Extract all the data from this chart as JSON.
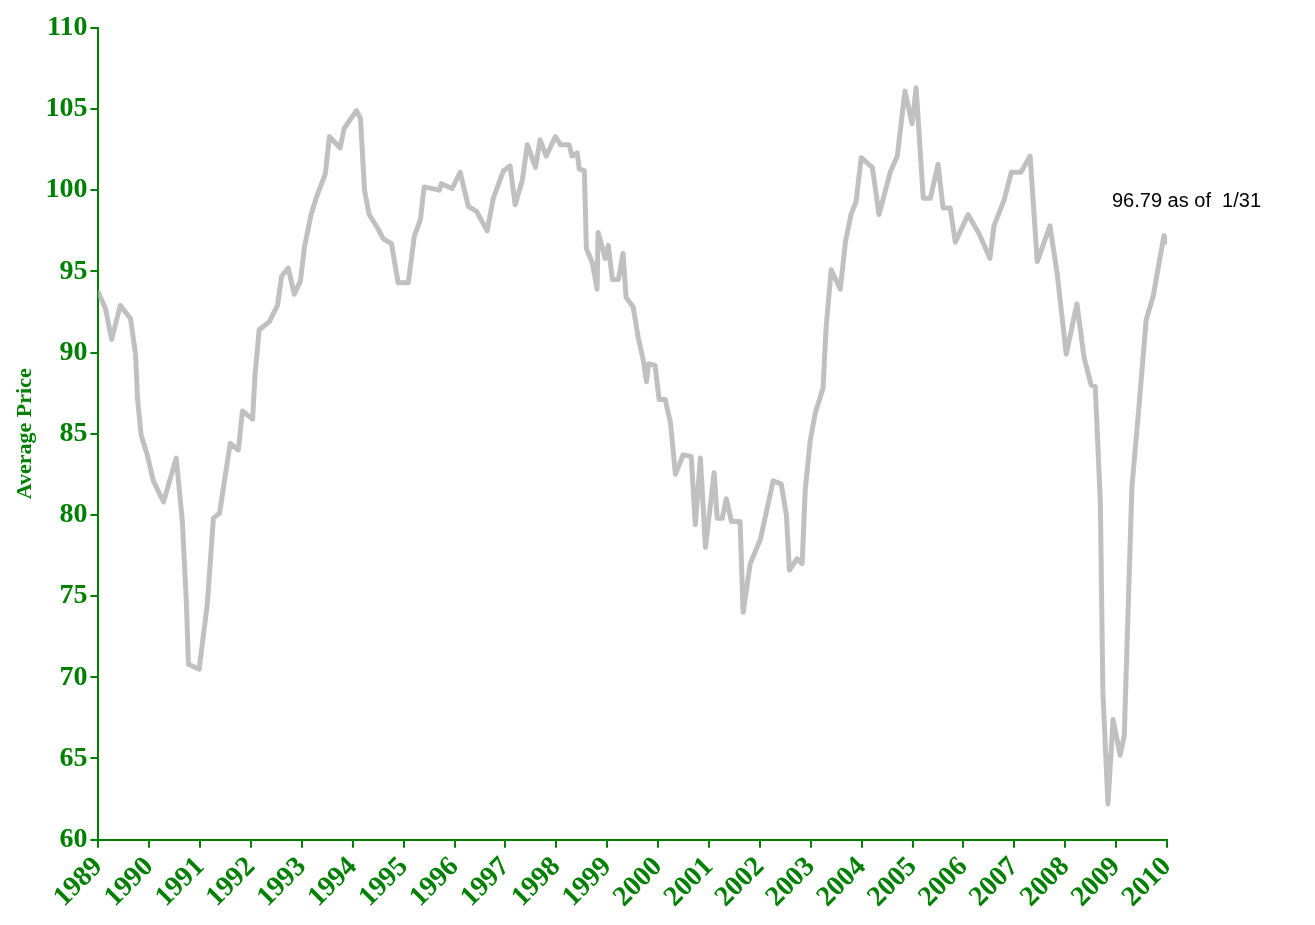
{
  "chart_data": {
    "type": "line",
    "ylabel": "Average Price",
    "x": [
      1989.0,
      1989.14,
      1989.26,
      1989.43,
      1989.63,
      1989.73,
      1989.77,
      1989.84,
      1989.96,
      1990.08,
      1990.28,
      1990.53,
      1990.65,
      1990.73,
      1990.77,
      1990.98,
      1991.14,
      1991.26,
      1991.38,
      1991.59,
      1991.75,
      1991.83,
      1992.03,
      1992.08,
      1992.16,
      1992.36,
      1992.52,
      1992.6,
      1992.73,
      1992.85,
      1992.97,
      1993.05,
      1993.18,
      1993.3,
      1993.46,
      1993.54,
      1993.75,
      1993.83,
      1994.07,
      1994.15,
      1994.23,
      1994.32,
      1994.48,
      1994.6,
      1994.76,
      1994.89,
      1995.09,
      1995.21,
      1995.33,
      1995.4,
      1995.7,
      1995.74,
      1995.95,
      1996.11,
      1996.27,
      1996.43,
      1996.64,
      1996.76,
      1996.96,
      1997.09,
      1997.19,
      1997.33,
      1997.43,
      1997.59,
      1997.68,
      1997.8,
      1997.98,
      1998.08,
      1998.25,
      1998.31,
      1998.41,
      1998.45,
      1998.55,
      1998.59,
      1998.71,
      1998.8,
      1998.82,
      1998.96,
      1999.02,
      1999.1,
      1999.22,
      1999.31,
      1999.37,
      1999.51,
      1999.61,
      1999.71,
      1999.77,
      1999.81,
      1999.94,
      2000.02,
      2000.14,
      2000.24,
      2000.34,
      2000.49,
      2000.65,
      2000.73,
      2000.83,
      2000.93,
      2001.1,
      2001.16,
      2001.26,
      2001.34,
      2001.44,
      2001.61,
      2001.67,
      2001.81,
      2002.01,
      2002.26,
      2002.42,
      2002.52,
      2002.58,
      2002.73,
      2002.83,
      2002.89,
      2002.99,
      2003.09,
      2003.24,
      2003.3,
      2003.4,
      2003.58,
      2003.68,
      2003.79,
      2003.89,
      2003.99,
      2004.21,
      2004.34,
      2004.56,
      2004.7,
      2004.85,
      2004.99,
      2005.07,
      2005.21,
      2005.35,
      2005.5,
      2005.6,
      2005.74,
      2005.84,
      2006.09,
      2006.31,
      2006.52,
      2006.6,
      2006.8,
      2006.94,
      2007.13,
      2007.31,
      2007.45,
      2007.7,
      2007.84,
      2008.02,
      2008.23,
      2008.37,
      2008.51,
      2008.59,
      2008.69,
      2008.74,
      2008.84,
      2008.94,
      2009.08,
      2009.16,
      2009.31,
      2009.45,
      2009.59,
      2009.73,
      2009.94,
      2010.0
    ],
    "values": [
      93.7,
      92.7,
      90.8,
      92.9,
      92.1,
      89.9,
      87.1,
      84.9,
      83.7,
      82.1,
      80.8,
      83.5,
      79.6,
      74.5,
      70.8,
      70.5,
      74.5,
      79.8,
      80.1,
      84.4,
      84.0,
      86.4,
      85.9,
      88.7,
      91.4,
      91.9,
      92.9,
      94.7,
      95.2,
      93.6,
      94.4,
      96.5,
      98.5,
      99.7,
      101.0,
      103.3,
      102.6,
      103.8,
      104.9,
      104.4,
      100.0,
      98.5,
      97.7,
      97.0,
      96.7,
      94.3,
      94.3,
      97.2,
      98.2,
      100.2,
      100.0,
      100.4,
      100.1,
      101.1,
      99.0,
      98.7,
      97.5,
      99.5,
      101.2,
      101.5,
      99.1,
      100.6,
      102.8,
      101.4,
      103.1,
      102.1,
      103.3,
      102.8,
      102.8,
      102.1,
      102.3,
      101.3,
      101.2,
      96.4,
      95.5,
      93.9,
      97.4,
      95.8,
      96.6,
      94.5,
      94.5,
      96.1,
      93.4,
      92.8,
      90.9,
      89.5,
      88.2,
      89.3,
      89.2,
      87.1,
      87.1,
      85.7,
      82.5,
      83.7,
      83.6,
      79.4,
      83.5,
      78.0,
      82.6,
      79.8,
      79.8,
      81.0,
      79.6,
      79.6,
      74.0,
      77.0,
      78.5,
      82.1,
      81.9,
      80.0,
      76.6,
      77.3,
      77.0,
      81.5,
      84.6,
      86.3,
      87.8,
      91.5,
      95.1,
      93.9,
      96.8,
      98.5,
      99.3,
      102.0,
      101.4,
      98.5,
      101.1,
      102.1,
      106.1,
      104.1,
      106.3,
      99.5,
      99.5,
      101.6,
      98.9,
      98.9,
      96.8,
      98.5,
      97.3,
      95.8,
      97.8,
      99.4,
      101.1,
      101.1,
      102.1,
      95.6,
      97.8,
      94.9,
      89.9,
      93.0,
      89.7,
      88.0,
      87.9,
      80.8,
      69.1,
      62.2,
      67.4,
      65.2,
      66.4,
      81.7,
      86.7,
      92.0,
      93.5,
      97.2,
      96.79
    ],
    "color": "#c0c0c0",
    "marker": "none",
    "line_style": "solid",
    "grid": false,
    "legend": false,
    "xlim": [
      1989,
      2010
    ],
    "xticks": [
      1989,
      1990,
      1991,
      1992,
      1993,
      1994,
      1995,
      1996,
      1997,
      1998,
      1999,
      2000,
      2001,
      2002,
      2003,
      2004,
      2005,
      2006,
      2007,
      2008,
      2009,
      2010
    ],
    "ylim": [
      60,
      110
    ],
    "yticks": [
      60,
      65,
      70,
      75,
      80,
      85,
      90,
      95,
      100,
      105,
      110
    ],
    "annotations": [
      {
        "text": "96.79 as of  1/31",
        "x": 2010,
        "y": 96.79
      }
    ]
  }
}
